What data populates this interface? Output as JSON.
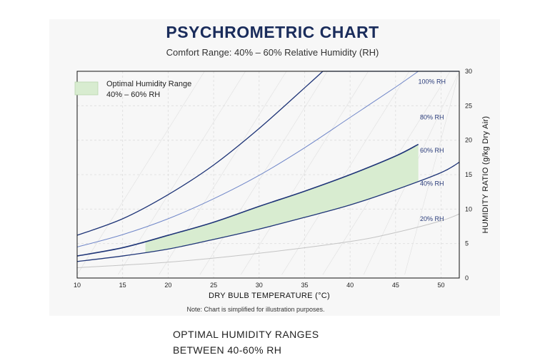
{
  "chart_data": {
    "type": "line",
    "title": "PSYCHROMETRIC CHART",
    "subtitle": "Comfort Range: 40% – 60% Relative Humidity (RH)",
    "xlabel": "DRY BULB TEMPERATURE (°C)",
    "ylabel": "HUMIDITY RATIO (g/kg Dry Air)",
    "xlim": [
      10,
      52
    ],
    "ylim": [
      0,
      30
    ],
    "x_ticks": [
      "10",
      "15",
      "20",
      "25",
      "30",
      "35",
      "40",
      "45",
      "50"
    ],
    "y_ticks": [
      "0",
      "5",
      "10",
      "15",
      "20",
      "25",
      "30"
    ],
    "grid": true,
    "legend": {
      "position": "top-left",
      "label_line1": "Optimal Humidity Range",
      "label_line2": "40% – 60% RH",
      "color": "#d8ecd0"
    },
    "series": [
      {
        "name": "100% RH",
        "color": "#1e3477",
        "x": [
          10,
          15,
          20,
          25,
          30,
          35,
          37
        ],
        "y": [
          6.2,
          8.6,
          12.1,
          16.4,
          21.7,
          27.6,
          30
        ]
      },
      {
        "name": "80% RH",
        "color": "#6f86c8",
        "x": [
          10,
          15,
          20,
          25,
          30,
          35,
          40,
          45,
          47.5
        ],
        "y": [
          4.5,
          6.3,
          8.6,
          11.5,
          14.9,
          18.9,
          23.3,
          27.7,
          30
        ]
      },
      {
        "name": "60% RH",
        "color": "#1e3477",
        "x": [
          10,
          15,
          20,
          25,
          30,
          35,
          40,
          45,
          47.5
        ],
        "y": [
          3.2,
          4.4,
          6.2,
          8.1,
          10.4,
          12.6,
          15.0,
          17.7,
          19.4
        ]
      },
      {
        "name": "40% RH",
        "color": "#1e3477",
        "x": [
          10,
          15,
          20,
          25,
          30,
          35,
          40,
          45,
          50,
          52
        ],
        "y": [
          2.4,
          3.2,
          4.2,
          5.6,
          7.1,
          8.8,
          10.6,
          12.8,
          15.3,
          16.8
        ]
      },
      {
        "name": "20% RH",
        "color": "#c4c4c4",
        "x": [
          10,
          20,
          30,
          40,
          45,
          50,
          52
        ],
        "y": [
          1.5,
          2.3,
          3.6,
          5.3,
          6.6,
          8.3,
          9.3
        ]
      }
    ],
    "optimal_band": {
      "lower_series": "40% RH",
      "upper_series": "60% RH",
      "x_start": 17.5,
      "x_end": 47.5
    },
    "saturation_cap": 30,
    "note": "Note: Chart is simplified for illustration purposes."
  },
  "caption": {
    "line1": "OPTIMAL HUMIDITY RANGES",
    "line2": "BETWEEN 40-60% RH"
  }
}
